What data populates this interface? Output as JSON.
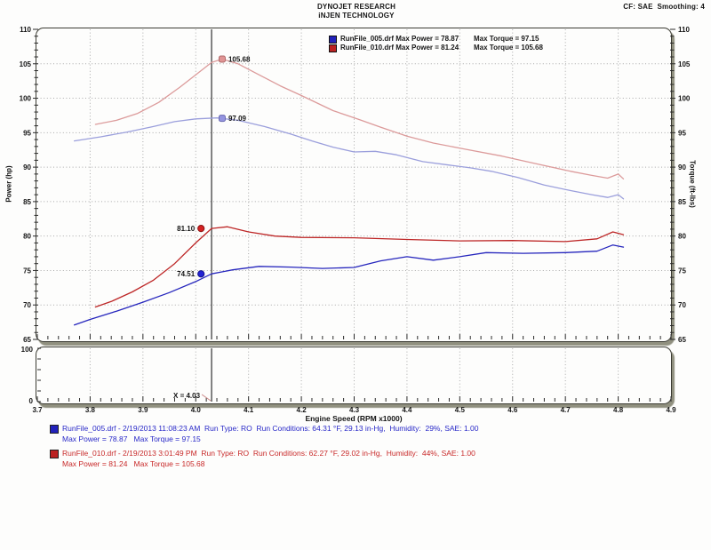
{
  "header": {
    "line1": "DYNOJET RESEARCH",
    "line2": "iNJEN TECHNOLOGY",
    "right": "CF: SAE  Smoothing: 4"
  },
  "legend": {
    "rows": [
      {
        "color": "#2222bb",
        "label": "RunFile_005.drf Max Power = 78.87",
        "torque": "Max Torque = 97.15"
      },
      {
        "color": "#bb2222",
        "label": "RunFile_010.drf Max Power = 81.24",
        "torque": "Max Torque = 105.68"
      }
    ]
  },
  "footer": {
    "runs": [
      {
        "color": "#2929c8",
        "line1": "RunFile_005.drf - 2/19/2013 11:08:23 AM  Run Type: RO  Run Conditions: 64.31 °F, 29.13 in-Hg,  Humidity:  29%, SAE: 1.00",
        "line2": "Max Power = 78.87   Max Torque = 97.15"
      },
      {
        "color": "#c82929",
        "line1": "RunFile_010.drf - 2/19/2013 3:01:49 PM  Run Type: RO  Run Conditions: 62.27 °F, 29.02 in-Hg,  Humidity:  44%, SAE: 1.00",
        "line2": "Max Power = 81.24   Max Torque = 105.68"
      }
    ]
  },
  "chart_data": {
    "type": "line",
    "title": "Dynojet dyno run comparison",
    "x_axis": {
      "label": "Engine Speed (RPM x1000)",
      "min": 3.7,
      "max": 4.9,
      "major_step": 0.1,
      "minor_step": 0.02,
      "ticks": [
        3.7,
        3.8,
        3.9,
        4.0,
        4.1,
        4.2,
        4.3,
        4.4,
        4.5,
        4.6,
        4.7,
        4.8,
        4.9
      ]
    },
    "y_left": {
      "label": "Power (hp)",
      "min": 65,
      "max": 110,
      "major_step": 5,
      "minor_step": 1,
      "ticks": [
        65,
        70,
        75,
        80,
        85,
        90,
        95,
        100,
        105,
        110
      ]
    },
    "y_right": {
      "label": "Torque (ft-lbs)",
      "min": 65,
      "max": 110,
      "major_step": 5,
      "minor_step": 1,
      "ticks": [
        65,
        70,
        75,
        80,
        85,
        90,
        95,
        100,
        105,
        110
      ]
    },
    "grid": true,
    "cursor_x": 4.03,
    "series": [
      {
        "name": "RunFile_005 Power (hp)",
        "color": "#2626bd",
        "axis": "left",
        "points": [
          [
            3.77,
            67.1
          ],
          [
            3.8,
            67.9
          ],
          [
            3.85,
            69.1
          ],
          [
            3.9,
            70.4
          ],
          [
            3.95,
            71.8
          ],
          [
            4.0,
            73.4
          ],
          [
            4.03,
            74.51
          ],
          [
            4.07,
            75.1
          ],
          [
            4.12,
            75.6
          ],
          [
            4.18,
            75.5
          ],
          [
            4.24,
            75.3
          ],
          [
            4.3,
            75.45
          ],
          [
            4.35,
            76.4
          ],
          [
            4.4,
            77.0
          ],
          [
            4.45,
            76.5
          ],
          [
            4.5,
            77.0
          ],
          [
            4.55,
            77.6
          ],
          [
            4.62,
            77.5
          ],
          [
            4.7,
            77.6
          ],
          [
            4.76,
            77.8
          ],
          [
            4.79,
            78.7
          ],
          [
            4.81,
            78.4
          ]
        ]
      },
      {
        "name": "RunFile_010 Power (hp)",
        "color": "#bd2626",
        "axis": "left",
        "points": [
          [
            3.81,
            69.7
          ],
          [
            3.84,
            70.5
          ],
          [
            3.88,
            71.9
          ],
          [
            3.92,
            73.6
          ],
          [
            3.96,
            76.0
          ],
          [
            4.0,
            79.0
          ],
          [
            4.03,
            81.1
          ],
          [
            4.06,
            81.35
          ],
          [
            4.1,
            80.6
          ],
          [
            4.15,
            80.0
          ],
          [
            4.2,
            79.8
          ],
          [
            4.3,
            79.75
          ],
          [
            4.4,
            79.5
          ],
          [
            4.5,
            79.3
          ],
          [
            4.6,
            79.35
          ],
          [
            4.7,
            79.2
          ],
          [
            4.76,
            79.6
          ],
          [
            4.79,
            80.6
          ],
          [
            4.81,
            80.2
          ]
        ]
      },
      {
        "name": "RunFile_005 Torque (ft-lbs)",
        "color": "#9b9fdc",
        "axis": "right",
        "points": [
          [
            3.77,
            93.8
          ],
          [
            3.82,
            94.4
          ],
          [
            3.87,
            95.1
          ],
          [
            3.92,
            95.9
          ],
          [
            3.96,
            96.6
          ],
          [
            4.0,
            97.0
          ],
          [
            4.04,
            97.15
          ],
          [
            4.08,
            96.8
          ],
          [
            4.13,
            95.9
          ],
          [
            4.18,
            94.8
          ],
          [
            4.22,
            93.8
          ],
          [
            4.26,
            92.9
          ],
          [
            4.3,
            92.2
          ],
          [
            4.34,
            92.3
          ],
          [
            4.38,
            91.8
          ],
          [
            4.43,
            90.8
          ],
          [
            4.48,
            90.3
          ],
          [
            4.52,
            89.9
          ],
          [
            4.56,
            89.4
          ],
          [
            4.61,
            88.5
          ],
          [
            4.66,
            87.4
          ],
          [
            4.71,
            86.6
          ],
          [
            4.75,
            86.0
          ],
          [
            4.78,
            85.6
          ],
          [
            4.8,
            86.0
          ],
          [
            4.81,
            85.4
          ]
        ]
      },
      {
        "name": "RunFile_010 Torque (ft-lbs)",
        "color": "#dc9b9b",
        "axis": "right",
        "points": [
          [
            3.81,
            96.2
          ],
          [
            3.85,
            96.8
          ],
          [
            3.89,
            97.8
          ],
          [
            3.93,
            99.4
          ],
          [
            3.97,
            101.6
          ],
          [
            4.0,
            103.4
          ],
          [
            4.03,
            105.2
          ],
          [
            4.05,
            105.68
          ],
          [
            4.08,
            105.0
          ],
          [
            4.12,
            103.4
          ],
          [
            4.16,
            101.8
          ],
          [
            4.2,
            100.4
          ],
          [
            4.26,
            98.2
          ],
          [
            4.31,
            96.9
          ],
          [
            4.35,
            95.8
          ],
          [
            4.4,
            94.5
          ],
          [
            4.45,
            93.5
          ],
          [
            4.51,
            92.6
          ],
          [
            4.58,
            91.6
          ],
          [
            4.65,
            90.4
          ],
          [
            4.71,
            89.4
          ],
          [
            4.75,
            88.8
          ],
          [
            4.78,
            88.4
          ],
          [
            4.8,
            89.0
          ],
          [
            4.81,
            88.3
          ]
        ]
      }
    ],
    "annotations": [
      {
        "text": "105.68",
        "x": 4.05,
        "y": 105.68,
        "marker": "square",
        "fill": "#e09494",
        "stroke": "#b06a6a",
        "side": "right"
      },
      {
        "text": "97.09",
        "x": 4.05,
        "y": 97.09,
        "marker": "square",
        "fill": "#9494e0",
        "stroke": "#6a6ab0",
        "side": "right"
      },
      {
        "text": "81.10",
        "x": 4.01,
        "y": 81.1,
        "marker": "circle",
        "fill": "#d42222",
        "stroke": "#8a1111",
        "side": "left"
      },
      {
        "text": "74.51",
        "x": 4.01,
        "y": 74.51,
        "marker": "circle",
        "fill": "#2222d4",
        "stroke": "#11118a",
        "side": "left"
      }
    ],
    "bottom_panel": {
      "y_max_label": "100",
      "y_min_label": "0",
      "y_min": 0,
      "y_max": 100,
      "cursor_label": "X = 4.03"
    }
  }
}
